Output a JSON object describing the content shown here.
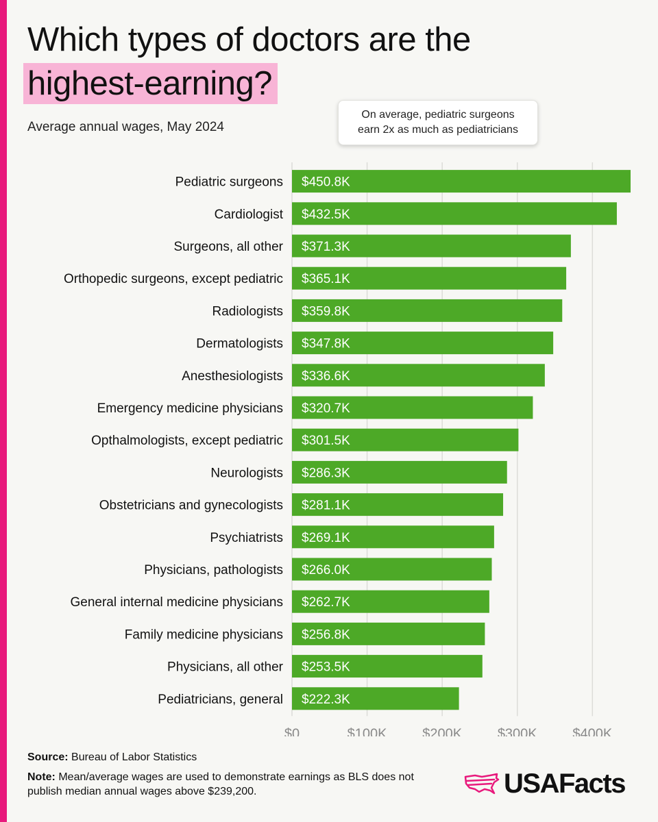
{
  "title": {
    "line1": "Which types of doctors are the",
    "line2": "highest-earning?"
  },
  "subtitle": "Average annual wages, May 2024",
  "callout": {
    "line1": "On average, pediatric surgeons",
    "line2": "earn 2x as much as pediatricians"
  },
  "footer": {
    "source_label": "Source:",
    "source_text": " Bureau of Labor Statistics",
    "note_label": "Note:",
    "note_text": " Mean/average wages are used to demonstrate earnings as BLS does not publish median annual wages above $239,200."
  },
  "logo": {
    "text": "USAFacts",
    "icon": "us-map-icon"
  },
  "colors": {
    "bar": "#4da927",
    "accent": "#e8197c",
    "highlight": "#f8b4d6",
    "grid": "#dcdcd8",
    "tick": "#8a8a8a"
  },
  "chart_data": {
    "type": "bar",
    "orientation": "horizontal",
    "title": "Which types of doctors are the highest-earning?",
    "subtitle": "Average annual wages, May 2024",
    "categories": [
      "Pediatric surgeons",
      "Cardiologist",
      "Surgeons, all other",
      "Orthopedic surgeons, except pediatric",
      "Radiologists",
      "Dermatologists",
      "Anesthesiologists",
      "Emergency medicine physicians",
      "Opthalmologists, except pediatric",
      "Neurologists",
      "Obstetricians and gynecologists",
      "Psychiatrists",
      "Physicians, pathologists",
      "General internal medicine physicians",
      "Family medicine physicians",
      "Physicians, all other",
      "Pediatricians, general"
    ],
    "values": [
      450.8,
      432.5,
      371.3,
      365.1,
      359.8,
      347.8,
      336.6,
      320.7,
      301.5,
      286.3,
      281.1,
      269.1,
      266.0,
      262.7,
      256.8,
      253.5,
      222.3
    ],
    "value_labels": [
      "$450.8K",
      "$432.5K",
      "$371.3K",
      "$365.1K",
      "$359.8K",
      "$347.8K",
      "$336.6K",
      "$320.7K",
      "$301.5K",
      "$286.3K",
      "$281.1K",
      "$269.1K",
      "$266.0K",
      "$262.7K",
      "$256.8K",
      "$253.5K",
      "$222.3K"
    ],
    "unit": "thousands of USD",
    "xlim": [
      0,
      450.8
    ],
    "xticks": [
      0,
      100,
      200,
      300,
      400
    ],
    "xtick_labels": [
      "$0",
      "$100K",
      "$200K",
      "$300K",
      "$400K"
    ],
    "grid": true
  }
}
